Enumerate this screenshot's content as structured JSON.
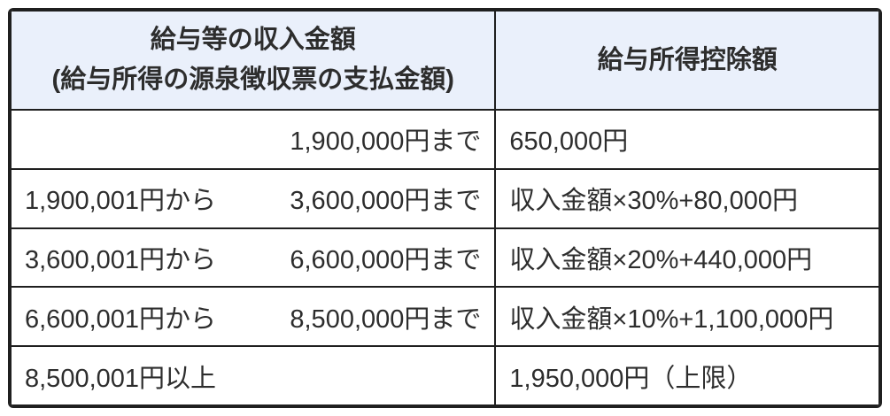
{
  "table": {
    "header": {
      "income_title_line1": "給与等の収入金額",
      "income_title_line2": "(給与所得の源泉徴収票の支払金額)",
      "deduction_title": "給与所得控除額"
    },
    "rows": [
      {
        "income_from": "",
        "income_to": "1,900,000円まで",
        "deduction": "650,000円"
      },
      {
        "income_from": "1,900,001円から",
        "income_to": "3,600,000円まで",
        "deduction": "収入金額×30%+80,000円"
      },
      {
        "income_from": "3,600,001円から",
        "income_to": "6,600,000円まで",
        "deduction": "収入金額×20%+440,000円"
      },
      {
        "income_from": "6,600,001円から",
        "income_to": "8,500,000円まで",
        "deduction": "収入金額×10%+1,100,000円"
      },
      {
        "income_from": "8,500,001円以上",
        "income_to": "",
        "deduction": "1,950,000円（上限）"
      }
    ],
    "colors": {
      "header_bg": "#eaf0fb",
      "body_bg": "#ffffff",
      "border": "#1f1f1f",
      "text": "#2d2d2d"
    }
  }
}
